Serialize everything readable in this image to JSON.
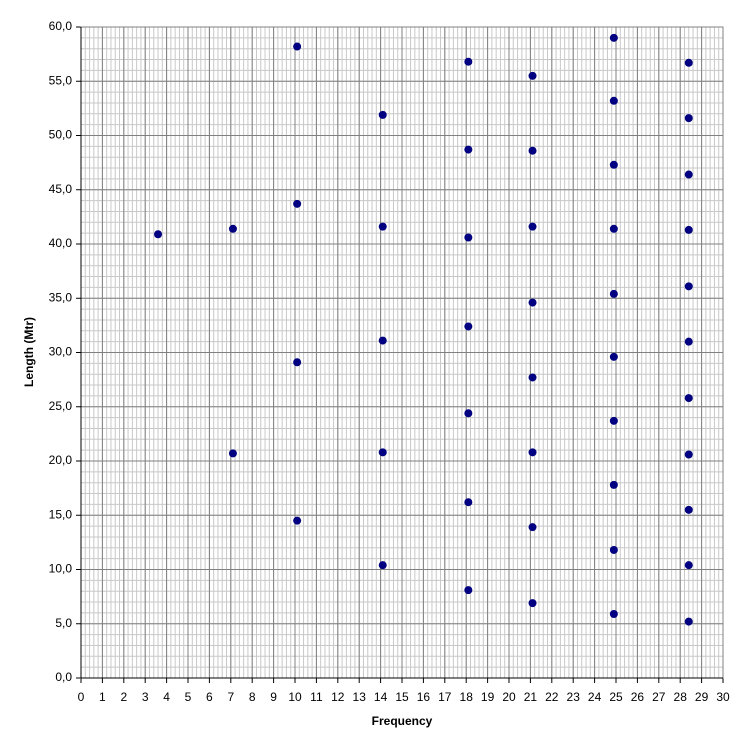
{
  "chart_data": {
    "type": "scatter",
    "x_label": "Frequency",
    "y_label": "Length (Mtr)",
    "series": [
      {
        "color": "#000080",
        "x": [
          3.6,
          7.1,
          7.1,
          10.1,
          10.1,
          10.1,
          10.1,
          14.1,
          14.1,
          14.1,
          14.1,
          14.1,
          18.1,
          18.1,
          18.1,
          18.1,
          18.1,
          18.1,
          18.1,
          21.1,
          21.1,
          21.1,
          21.1,
          21.1,
          21.1,
          21.1,
          21.1,
          24.9,
          24.9,
          24.9,
          24.9,
          24.9,
          24.9,
          24.9,
          24.9,
          24.9,
          24.9,
          28.4,
          28.4,
          28.4,
          28.4,
          28.4,
          28.4,
          28.4,
          28.4,
          28.4,
          28.4,
          28.4
        ],
        "values": [
          40.9,
          41.4,
          20.7,
          58.2,
          43.7,
          29.1,
          14.5,
          51.9,
          41.6,
          31.1,
          20.8,
          10.4,
          56.8,
          48.7,
          40.6,
          32.4,
          24.4,
          16.2,
          8.1,
          55.5,
          48.6,
          41.6,
          34.6,
          27.7,
          20.8,
          13.9,
          6.9,
          59.0,
          53.2,
          47.3,
          41.4,
          35.4,
          29.6,
          23.7,
          17.8,
          11.8,
          5.9,
          56.7,
          51.6,
          46.4,
          41.3,
          36.1,
          31.0,
          25.8,
          20.6,
          15.5,
          10.4,
          5.2
        ]
      }
    ],
    "xlim": [
      0,
      30
    ],
    "xticks": [
      0,
      1,
      2,
      3,
      4,
      5,
      6,
      7,
      8,
      9,
      10,
      11,
      12,
      13,
      14,
      15,
      16,
      17,
      18,
      19,
      20,
      21,
      22,
      23,
      24,
      25,
      26,
      27,
      28,
      29,
      30
    ],
    "ylim": [
      0,
      60
    ],
    "yticks": [
      {
        "value": 0,
        "label": "0,0"
      },
      {
        "value": 5,
        "label": "5,0"
      },
      {
        "value": 10,
        "label": "10,0"
      },
      {
        "value": 15,
        "label": "15,0"
      },
      {
        "value": 20,
        "label": "20,0"
      },
      {
        "value": 25,
        "label": "25,0"
      },
      {
        "value": 30,
        "label": "30,0"
      },
      {
        "value": 35,
        "label": "35,0"
      },
      {
        "value": 40,
        "label": "40,0"
      },
      {
        "value": 45,
        "label": "45,0"
      },
      {
        "value": 50,
        "label": "50,0"
      },
      {
        "value": 55,
        "label": "55,0"
      },
      {
        "value": 60,
        "label": "60,0"
      }
    ],
    "grid": true,
    "minor_grid": {
      "x": 0.2,
      "y": 1
    }
  }
}
